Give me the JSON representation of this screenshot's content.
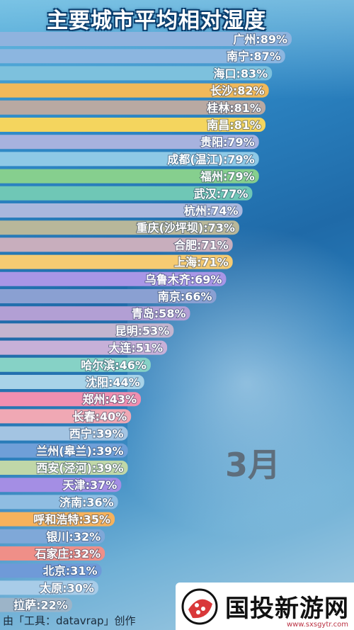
{
  "title": "主要城市平均相对湿度",
  "month_label": "3月",
  "footer": "由「工具：datavrap」创作",
  "watermark": {
    "name": "国投新游网",
    "url": "www.sxsgytr.com"
  },
  "chart_data": {
    "type": "bar",
    "orientation": "horizontal",
    "title": "主要城市平均相对湿度",
    "xlim": [
      0,
      100
    ],
    "unit": "%",
    "bars": [
      {
        "city": "广州",
        "value": 89,
        "label": "广州:89%",
        "color": "#8fb3de"
      },
      {
        "city": "南宁",
        "value": 87,
        "label": "南宁:87%",
        "color": "#8cb6e0"
      },
      {
        "city": "海口",
        "value": 83,
        "label": "海口:83%",
        "color": "#7dc1dd"
      },
      {
        "city": "长沙",
        "value": 82,
        "label": "长沙:82%",
        "color": "#f0b95a"
      },
      {
        "city": "桂林",
        "value": 81,
        "label": "桂林:81%",
        "color": "#b9a9a2"
      },
      {
        "city": "南昌",
        "value": 81,
        "label": "南昌:81%",
        "color": "#f4d55e"
      },
      {
        "city": "贵阳",
        "value": 79,
        "label": "贵阳:79%",
        "color": "#a7b2de"
      },
      {
        "city": "成都(温江)",
        "value": 79,
        "label": "成都(温江):79%",
        "color": "#8ec9e6"
      },
      {
        "city": "福州",
        "value": 79,
        "label": "福州:79%",
        "color": "#86cf8e"
      },
      {
        "city": "武汉",
        "value": 77,
        "label": "武汉:77%",
        "color": "#6fc7b6"
      },
      {
        "city": "杭州",
        "value": 74,
        "label": "杭州:74%",
        "color": "#a9b7dd"
      },
      {
        "city": "重庆(沙坪坝)",
        "value": 73,
        "label": "重庆(沙坪坝):73%",
        "color": "#b8b79a"
      },
      {
        "city": "合肥",
        "value": 71,
        "label": "合肥:71%",
        "color": "#c8aebd"
      },
      {
        "city": "上海",
        "value": 71,
        "label": "上海:71%",
        "color": "#f6cb72"
      },
      {
        "city": "乌鲁木齐",
        "value": 69,
        "label": "乌鲁木齐:69%",
        "color": "#a896e6"
      },
      {
        "city": "南京",
        "value": 66,
        "label": "南京:66%",
        "color": "#8aa0d2"
      },
      {
        "city": "青岛",
        "value": 58,
        "label": "青岛:58%",
        "color": "#b29fd4"
      },
      {
        "city": "昆明",
        "value": 53,
        "label": "昆明:53%",
        "color": "#c3b5cf"
      },
      {
        "city": "大连",
        "value": 51,
        "label": "大连:51%",
        "color": "#c7b0d8"
      },
      {
        "city": "哈尔滨",
        "value": 46,
        "label": "哈尔滨:46%",
        "color": "#86d2c6"
      },
      {
        "city": "沈阳",
        "value": 44,
        "label": "沈阳:44%",
        "color": "#a8d3e8"
      },
      {
        "city": "郑州",
        "value": 43,
        "label": "郑州:43%",
        "color": "#f08fb0"
      },
      {
        "city": "长春",
        "value": 40,
        "label": "长春:40%",
        "color": "#f0a8b4"
      },
      {
        "city": "西宁",
        "value": 39,
        "label": "西宁:39%",
        "color": "#a3c4e2"
      },
      {
        "city": "兰州(皋兰)",
        "value": 39,
        "label": "兰州(皋兰):39%",
        "color": "#6f9fd8"
      },
      {
        "city": "西安(泾河)",
        "value": 39,
        "label": "西安(泾河):39%",
        "color": "#c0d7a8"
      },
      {
        "city": "天津",
        "value": 37,
        "label": "天津:37%",
        "color": "#a48ee4"
      },
      {
        "city": "济南",
        "value": 36,
        "label": "济南:36%",
        "color": "#8fbde2"
      },
      {
        "city": "呼和浩特",
        "value": 35,
        "label": "呼和浩特:35%",
        "color": "#f6b25c"
      },
      {
        "city": "银川",
        "value": 32,
        "label": "银川:32%",
        "color": "#7fa8d8"
      },
      {
        "city": "石家庄",
        "value": 32,
        "label": "石家庄:32%",
        "color": "#ef8f88"
      },
      {
        "city": "北京",
        "value": 31,
        "label": "北京:31%",
        "color": "#6f9ad8"
      },
      {
        "city": "太原",
        "value": 30,
        "label": "太原:30%",
        "color": "#a8cce8"
      },
      {
        "city": "拉萨",
        "value": 22,
        "label": "拉萨:22%",
        "color": "#9cb4c8"
      }
    ]
  }
}
